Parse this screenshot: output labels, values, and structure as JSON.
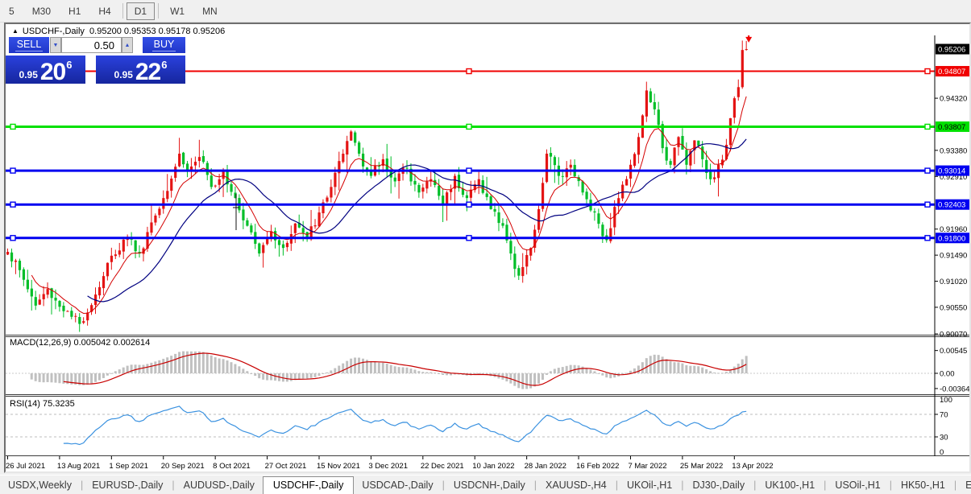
{
  "toolbar": {
    "timeframes": [
      {
        "label": "5",
        "name": "m5",
        "selected": false
      },
      {
        "label": "M30",
        "name": "m30",
        "selected": false
      },
      {
        "label": "H1",
        "name": "h1",
        "selected": false
      },
      {
        "label": "H4",
        "name": "h4",
        "selected": false
      },
      {
        "label": "D1",
        "name": "d1",
        "selected": true
      },
      {
        "label": "W1",
        "name": "w1",
        "selected": false
      },
      {
        "label": "MN",
        "name": "mn",
        "selected": false
      }
    ]
  },
  "chart": {
    "header": {
      "collapse_icon": "▲",
      "title": "USDCHF-,Daily",
      "ohlc": "0.95200 0.95353 0.95178 0.95206"
    },
    "order_panel": {
      "sell_label": "SELL",
      "buy_label": "BUY",
      "volume": "0.50",
      "sell_price_small": "0.95",
      "sell_price_big": "20",
      "sell_price_sup": "6",
      "buy_price_small": "0.95",
      "buy_price_big": "22",
      "buy_price_sup": "6"
    }
  },
  "chart_data": {
    "type": "candlestick",
    "symbol": "USDCHF-",
    "timeframe": "Daily",
    "current_ohlc": {
      "open": 0.952,
      "high": 0.95353,
      "low": 0.95178,
      "close": 0.95206
    },
    "colors": {
      "up_candle": "#e41414",
      "down_candle": "#00bE28",
      "ma_fast": "#d40000",
      "ma_slow": "#000080",
      "axis_text": "#000000",
      "marker_arrow": "#f00000"
    },
    "candles_count": 186,
    "price_path_anchors": [
      [
        0,
        0.9155
      ],
      [
        3,
        0.9122
      ],
      [
        7,
        0.9058
      ],
      [
        10,
        0.9088
      ],
      [
        14,
        0.9048
      ],
      [
        18,
        0.9025
      ],
      [
        22,
        0.9078
      ],
      [
        26,
        0.9148
      ],
      [
        30,
        0.9182
      ],
      [
        33,
        0.9152
      ],
      [
        36,
        0.9208
      ],
      [
        39,
        0.9252
      ],
      [
        43,
        0.9332
      ],
      [
        45,
        0.9302
      ],
      [
        48,
        0.9326
      ],
      [
        51,
        0.9272
      ],
      [
        54,
        0.93
      ],
      [
        57,
        0.9252
      ],
      [
        60,
        0.9202
      ],
      [
        63,
        0.9152
      ],
      [
        66,
        0.9192
      ],
      [
        69,
        0.9162
      ],
      [
        72,
        0.9206
      ],
      [
        75,
        0.9178
      ],
      [
        78,
        0.9226
      ],
      [
        81,
        0.9272
      ],
      [
        84,
        0.9332
      ],
      [
        86,
        0.9372
      ],
      [
        88,
        0.9332
      ],
      [
        91,
        0.9292
      ],
      [
        94,
        0.9322
      ],
      [
        97,
        0.9282
      ],
      [
        100,
        0.9306
      ],
      [
        103,
        0.9262
      ],
      [
        106,
        0.9286
      ],
      [
        109,
        0.9242
      ],
      [
        112,
        0.9292
      ],
      [
        115,
        0.9252
      ],
      [
        118,
        0.9286
      ],
      [
        121,
        0.9232
      ],
      [
        124,
        0.9202
      ],
      [
        126,
        0.9152
      ],
      [
        128,
        0.9112
      ],
      [
        131,
        0.9162
      ],
      [
        133,
        0.9232
      ],
      [
        135,
        0.9332
      ],
      [
        138,
        0.9292
      ],
      [
        141,
        0.9312
      ],
      [
        144,
        0.9262
      ],
      [
        147,
        0.9226
      ],
      [
        150,
        0.9176
      ],
      [
        152,
        0.9236
      ],
      [
        154,
        0.9276
      ],
      [
        156,
        0.9312
      ],
      [
        158,
        0.9362
      ],
      [
        160,
        0.9446
      ],
      [
        162,
        0.9412
      ],
      [
        164,
        0.9342
      ],
      [
        166,
        0.9312
      ],
      [
        168,
        0.9362
      ],
      [
        170,
        0.9312
      ],
      [
        172,
        0.9356
      ],
      [
        174,
        0.9322
      ],
      [
        176,
        0.9286
      ],
      [
        178,
        0.9312
      ],
      [
        180,
        0.9348
      ],
      [
        181,
        0.9396
      ],
      [
        182,
        0.9432
      ],
      [
        183,
        0.9452
      ],
      [
        184,
        0.952
      ],
      [
        185,
        0.9521
      ]
    ],
    "levels": [
      {
        "price": 0.94807,
        "color": "#f00000",
        "width": 2
      },
      {
        "price": 0.93807,
        "color": "#00e000",
        "width": 3
      },
      {
        "price": 0.93014,
        "color": "#0000f0",
        "width": 3
      },
      {
        "price": 0.92403,
        "color": "#0000f0",
        "width": 3
      },
      {
        "price": 0.918,
        "color": "#0000f0",
        "width": 3
      }
    ],
    "price_axis_ticks": [
      "0.94320",
      "0.93380",
      "0.92910",
      "0.91960",
      "0.91490",
      "0.91020",
      "0.90550",
      "0.90070"
    ],
    "price_axis_boxes": [
      {
        "label": "0.95206",
        "bg": "#000000",
        "fg": "#ffffff"
      },
      {
        "label": "0.94807",
        "bg": "#f00000",
        "fg": "#ffffff"
      },
      {
        "label": "0.93807",
        "bg": "#00e000",
        "fg": "#000000"
      },
      {
        "label": "0.93014",
        "bg": "#0000f0",
        "fg": "#ffffff"
      },
      {
        "label": "0.92403",
        "bg": "#0000f0",
        "fg": "#ffffff"
      },
      {
        "label": "0.91800",
        "bg": "#0000f0",
        "fg": "#ffffff"
      }
    ],
    "x_axis_dates": [
      "26 Jul 2021",
      "13 Aug 2021",
      "1 Sep 2021",
      "20 Sep 2021",
      "8 Oct 2021",
      "27 Oct 2021",
      "15 Nov 2021",
      "3 Dec 2021",
      "22 Dec 2021",
      "10 Jan 2022",
      "28 Jan 2022",
      "16 Feb 2022",
      "7 Mar 2022",
      "25 Mar 2022",
      "13 Apr 2022"
    ],
    "macd": {
      "label": "MACD(12,26,9) 0.005042 0.002614",
      "params": [
        12,
        26,
        9
      ],
      "main_value": "0.005042",
      "signal_value": "0.002614",
      "axis_labels": [
        {
          "text": "0.00545",
          "v": 0.00545
        },
        {
          "text": "0.00",
          "v": 0
        },
        {
          "text": "-0.00364",
          "v": -0.00364
        }
      ],
      "hist_color": "#c0c0c0",
      "signal_color": "#c80000"
    },
    "rsi": {
      "label": "RSI(14) 75.3235",
      "period": 14,
      "value": 75.3235,
      "dashed_levels": [
        70,
        30
      ],
      "axis_labels": [
        100,
        70,
        30,
        0
      ],
      "color": "#3b92e0",
      "level_color": "#bcbcbc"
    }
  },
  "tabbar": {
    "tabs": [
      "USDX,Weekly",
      "EURUSD-,Daily",
      "AUDUSD-,Daily",
      "USDCHF-,Daily",
      "USDCAD-,Daily",
      "USDCNH-,Daily",
      "XAUUSD-,H4",
      "UKOil-,H1",
      "DJ30-,Daily",
      "UK100-,H1",
      "USOil-,H1",
      "HK50-,H1",
      "EU"
    ],
    "active": "USDCHF-,Daily",
    "scroll_left": "◄",
    "scroll_right": "►"
  }
}
